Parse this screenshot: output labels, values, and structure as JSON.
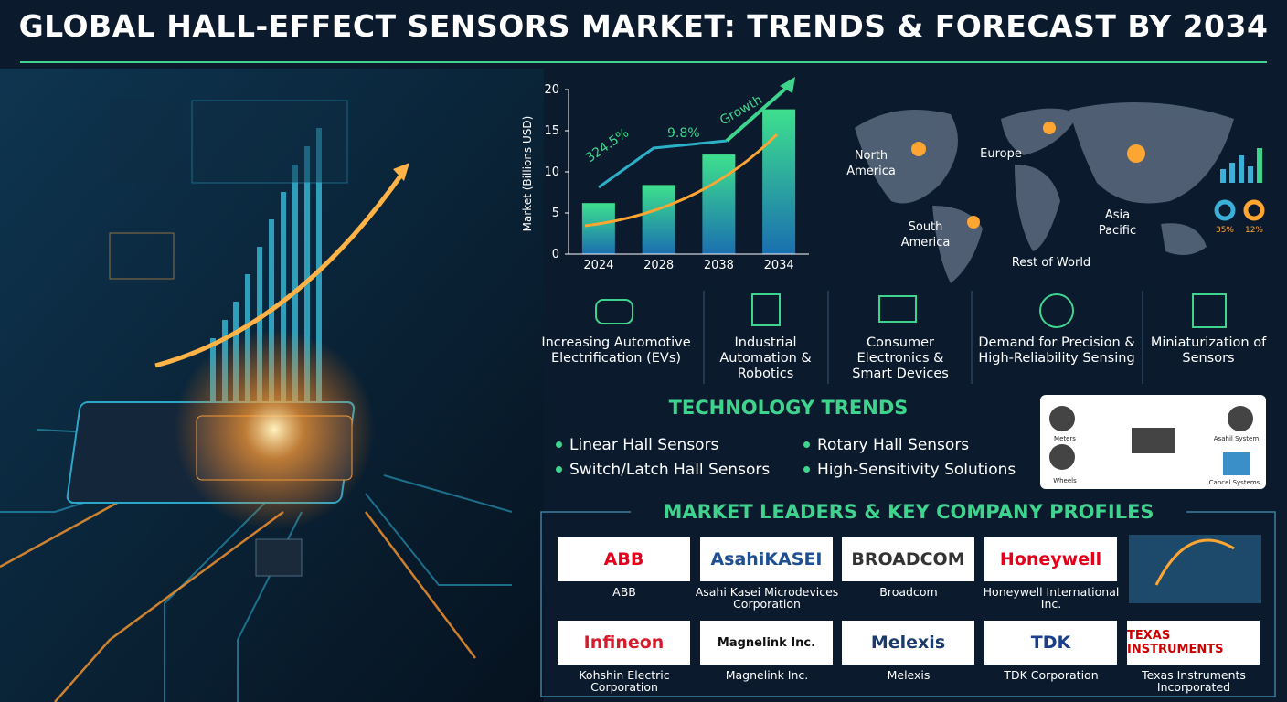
{
  "title": "GLOBAL HALL-EFFECT SENSORS MARKET: TRENDS & FORECAST BY 2034",
  "chart_data": {
    "type": "bar",
    "y_label": "Market (Billions USD)",
    "categories": [
      "2024",
      "2028",
      "2038",
      "2034"
    ],
    "values": [
      6.2,
      8.4,
      12.1,
      17.6
    ],
    "ylim": [
      0,
      20
    ],
    "yticks": [
      0,
      5,
      10,
      15,
      20
    ],
    "annotations": [
      "324.5%",
      "9.8%",
      "Growth"
    ]
  },
  "map": {
    "regions": [
      "North America",
      "Europe",
      "Asia Pacific",
      "South America",
      "Rest of World"
    ],
    "shares": [
      "35%",
      "12%"
    ]
  },
  "drivers": [
    "Increasing Automotive Electrification (EVs)",
    "Industrial Automation & Robotics",
    "Consumer Electronics & Smart Devices",
    "Demand for Precision & High-Reliability Sensing",
    "Miniaturization of Sensors"
  ],
  "trends": {
    "title": "TECHNOLOGY TRENDS",
    "items": [
      "Linear Hall Sensors",
      "Rotary Hall Sensors",
      "Switch/Latch Hall Sensors",
      "High-Sensitivity Solutions"
    ]
  },
  "diagram": {
    "labels": [
      "Meters",
      "Asahil System",
      "Wheels",
      "Cancel Systems"
    ]
  },
  "leaders": {
    "title": "MARKET LEADERS & KEY COMPANY PROFILES",
    "companies": [
      {
        "logo": "ABB",
        "name": "ABB"
      },
      {
        "logo": "AsahiKASEI",
        "name": "Asahi Kasei Microdevices Corporation"
      },
      {
        "logo": "BROADCOM",
        "name": "Broadcom"
      },
      {
        "logo": "Honeywell",
        "name": "Honeywell International Inc."
      },
      {
        "logo": "Infineon",
        "name": "Kohshin Electric Corporation"
      },
      {
        "logo": "Magnelink Inc.",
        "name": "Magnelink Inc."
      },
      {
        "logo": "Melexis",
        "name": "Melexis"
      },
      {
        "logo": "TDK",
        "name": "TDK Corporation"
      },
      {
        "logo": "TEXAS INSTRUMENTS",
        "name": "Texas Instruments Incorporated"
      }
    ]
  }
}
